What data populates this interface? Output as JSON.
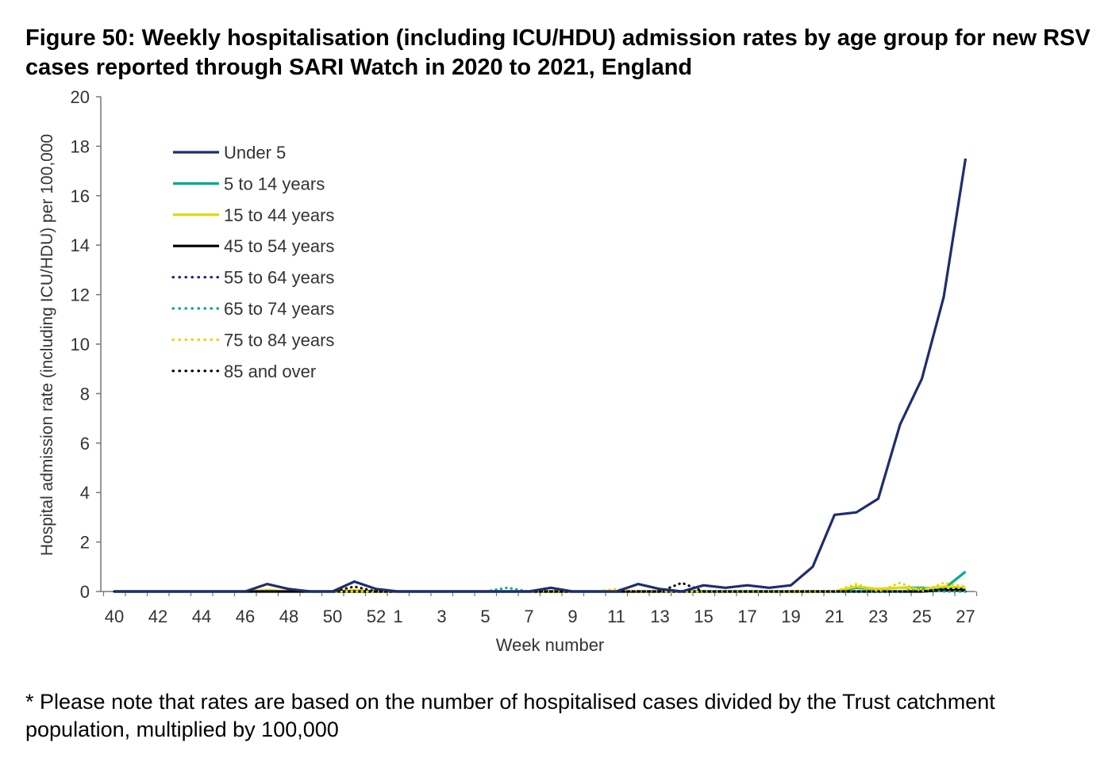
{
  "title": "Figure 50: Weekly hospitalisation (including ICU/HDU) admission rates by age group for new RSV cases reported through SARI Watch in 2020 to 2021, England",
  "footnote": "* Please note that rates are based on the number of hospitalised cases divided by the Trust catchment population, multiplied by 100,000",
  "chart_data": {
    "type": "line",
    "title": "Figure 50: Weekly hospitalisation (including ICU/HDU) admission rates by age group for new RSV cases reported through SARI Watch in 2020 to 2021, England",
    "xlabel": "Week number",
    "ylabel": "Hospital admission rate (including ICU/HDU) per 100,000",
    "ylim": [
      0,
      20
    ],
    "yticks": [
      0,
      2,
      4,
      6,
      8,
      10,
      12,
      14,
      16,
      18,
      20
    ],
    "x": [
      40,
      41,
      42,
      43,
      44,
      45,
      46,
      47,
      48,
      49,
      50,
      51,
      52,
      1,
      2,
      3,
      4,
      5,
      6,
      7,
      8,
      9,
      10,
      11,
      12,
      13,
      14,
      15,
      16,
      17,
      18,
      19,
      20,
      21,
      22,
      23,
      24,
      25,
      26,
      27
    ],
    "xtick_labels": [
      "40",
      "42",
      "44",
      "46",
      "48",
      "50",
      "52",
      "1",
      "3",
      "5",
      "7",
      "9",
      "11",
      "13",
      "15",
      "17",
      "19",
      "21",
      "23",
      "25",
      "27"
    ],
    "legend_position": "upper-left",
    "grid": false,
    "series": [
      {
        "name": "Under 5",
        "color": "#1f2d6e",
        "style": "solid",
        "values": [
          0,
          0,
          0,
          0,
          0,
          0,
          0,
          0.3,
          0.1,
          0,
          0,
          0.4,
          0.1,
          0,
          0,
          0,
          0,
          0,
          0,
          0,
          0.15,
          0,
          0,
          0,
          0.3,
          0.1,
          0,
          0.25,
          0.15,
          0.25,
          0.15,
          0.25,
          1.0,
          3.1,
          3.2,
          3.75,
          6.75,
          8.6,
          11.9,
          17.5
        ]
      },
      {
        "name": "5 to 14 years",
        "color": "#00a98f",
        "style": "solid",
        "values": [
          0,
          0,
          0,
          0,
          0,
          0,
          0,
          0,
          0,
          0,
          0,
          0,
          0,
          0,
          0,
          0,
          0,
          0,
          0,
          0,
          0,
          0,
          0,
          0,
          0,
          0,
          0,
          0,
          0,
          0,
          0,
          0,
          0,
          0,
          0.15,
          0.1,
          0.15,
          0.15,
          0.1,
          0.8
        ]
      },
      {
        "name": "15 to 44 years",
        "color": "#e8d600",
        "style": "solid",
        "values": [
          0,
          0,
          0,
          0,
          0,
          0,
          0,
          0.05,
          0,
          0,
          0,
          0.05,
          0,
          0,
          0,
          0,
          0,
          0,
          0,
          0,
          0,
          0,
          0,
          0,
          0,
          0,
          0,
          0,
          0,
          0,
          0,
          0,
          0,
          0,
          0.2,
          0.1,
          0.15,
          0.1,
          0.2,
          0.15
        ]
      },
      {
        "name": "45 to 54 years",
        "color": "#000000",
        "style": "solid",
        "values": [
          0,
          0,
          0,
          0,
          0,
          0,
          0,
          0,
          0,
          0,
          0,
          0,
          0,
          0,
          0,
          0,
          0,
          0,
          0,
          0,
          0,
          0,
          0,
          0,
          0,
          0,
          0,
          0,
          0,
          0,
          0,
          0,
          0,
          0,
          0,
          0,
          0,
          0,
          0.05,
          0.05
        ]
      },
      {
        "name": "55 to 64 years",
        "color": "#1f2d6e",
        "style": "dotted",
        "values": [
          0,
          0,
          0,
          0,
          0,
          0,
          0,
          0,
          0,
          0,
          0,
          0,
          0,
          0,
          0,
          0,
          0,
          0,
          0,
          0,
          0,
          0,
          0,
          0,
          0,
          0,
          0,
          0,
          0,
          0,
          0,
          0,
          0,
          0,
          0,
          0,
          0,
          0,
          0.05,
          0
        ]
      },
      {
        "name": "65 to 74 years",
        "color": "#00a98f",
        "style": "dotted",
        "values": [
          0,
          0,
          0,
          0,
          0,
          0,
          0,
          0,
          0,
          0,
          0,
          0,
          0,
          0,
          0,
          0,
          0,
          0,
          0.15,
          0,
          0,
          0,
          0,
          0,
          0,
          0,
          0,
          0,
          0,
          0,
          0,
          0,
          0,
          0,
          0,
          0,
          0,
          0.1,
          0,
          0
        ]
      },
      {
        "name": "75 to 84 years",
        "color": "#e8d600",
        "style": "dotted",
        "values": [
          0,
          0,
          0,
          0,
          0,
          0,
          0,
          0,
          0,
          0,
          0,
          0,
          0,
          0,
          0,
          0,
          0,
          0,
          0,
          0,
          0,
          0,
          0,
          0.1,
          0,
          0,
          0,
          0,
          0,
          0,
          0,
          0,
          0,
          0,
          0.3,
          0,
          0.35,
          0,
          0.35,
          0.2
        ]
      },
      {
        "name": "85 and over",
        "color": "#000000",
        "style": "dotted",
        "values": [
          0,
          0,
          0,
          0,
          0,
          0,
          0,
          0,
          0,
          0,
          0,
          0.2,
          0,
          0,
          0,
          0,
          0,
          0,
          0,
          0,
          0,
          0,
          0,
          0,
          0,
          0,
          0.35,
          0,
          0,
          0,
          0,
          0,
          0,
          0,
          0,
          0,
          0,
          0,
          0.1,
          0.1
        ]
      }
    ]
  }
}
